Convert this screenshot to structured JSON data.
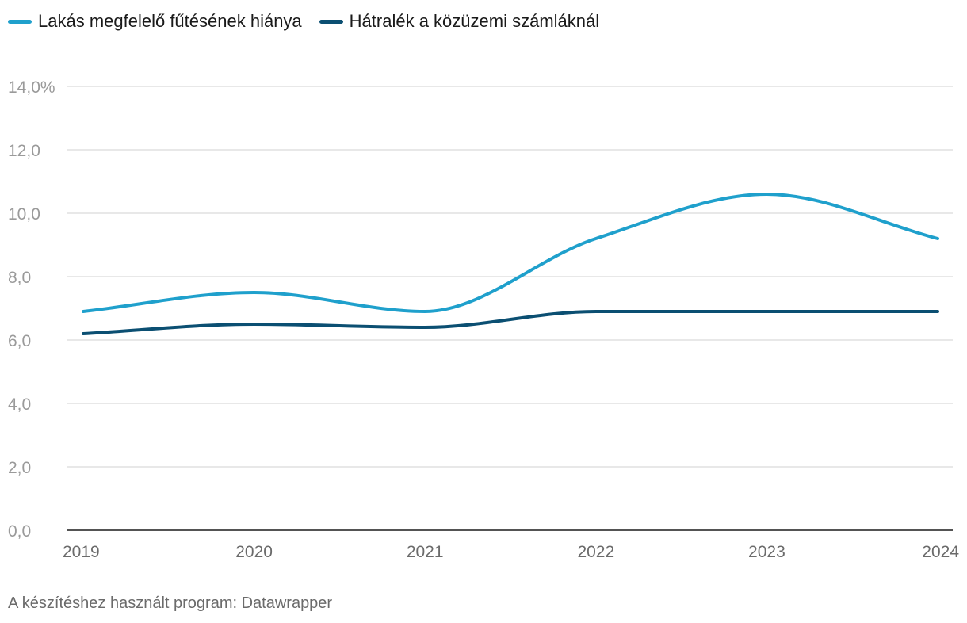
{
  "chart_data": {
    "type": "line",
    "title": "",
    "xlabel": "",
    "ylabel": "",
    "categories": [
      "2019",
      "2020",
      "2021",
      "2022",
      "2023",
      "2024"
    ],
    "y_ticks": [
      "14,0%",
      "12,0",
      "10,0",
      "8,0",
      "6,0",
      "4,0",
      "2,0",
      "0,0"
    ],
    "y_tick_values": [
      14,
      12,
      10,
      8,
      6,
      4,
      2,
      0
    ],
    "ylim": [
      0,
      14
    ],
    "grid": true,
    "legend_position": "top-left",
    "series": [
      {
        "name": "Lakás megfelelő fűtésének hiánya",
        "color": "#1fa0cc",
        "values": [
          6.9,
          7.5,
          6.9,
          9.2,
          10.6,
          9.2
        ]
      },
      {
        "name": "Hátralék a közüzemi számláknál",
        "color": "#0b4f72",
        "values": [
          6.2,
          6.5,
          6.4,
          6.9,
          6.9,
          6.9
        ]
      }
    ]
  },
  "footer": {
    "credit": "A készítéshez használt program: Datawrapper"
  }
}
